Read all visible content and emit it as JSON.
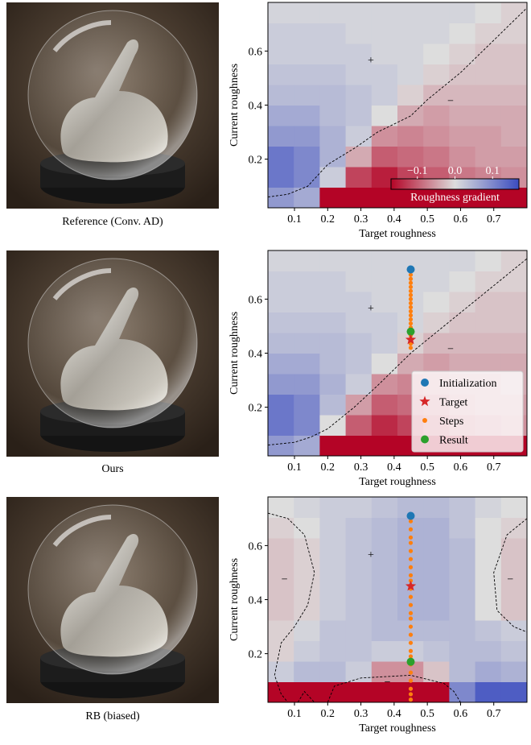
{
  "captions": [
    "Reference (Conv. AD)",
    "Ours",
    "RB (biased)"
  ],
  "chart_data": [
    {
      "type": "heatmap",
      "xlabel": "Target roughness",
      "ylabel": "Current roughness",
      "xlim": [
        0.02,
        0.8
      ],
      "ylim": [
        0.02,
        0.78
      ],
      "xticks": [
        0.1,
        0.2,
        0.3,
        0.4,
        0.5,
        0.6,
        0.7
      ],
      "yticks": [
        0.2,
        0.4,
        0.6
      ],
      "clim": [
        -0.17,
        0.17
      ],
      "cells": [
        [
          0.08,
          0.06,
          -0.2,
          -0.2,
          -0.2,
          -0.2,
          -0.2,
          -0.2,
          -0.2,
          -0.2
        ],
        [
          0.12,
          0.1,
          0.02,
          -0.12,
          -0.15,
          -0.12,
          -0.1,
          -0.08,
          -0.07,
          -0.06
        ],
        [
          0.12,
          0.1,
          0.05,
          -0.04,
          -0.1,
          -0.09,
          -0.08,
          -0.06,
          -0.05,
          -0.05
        ],
        [
          0.08,
          0.08,
          0.05,
          0.02,
          -0.06,
          -0.07,
          -0.06,
          -0.05,
          -0.05,
          -0.04
        ],
        [
          0.06,
          0.06,
          0.04,
          0.03,
          0.0,
          -0.04,
          -0.05,
          -0.04,
          -0.04,
          -0.04
        ],
        [
          0.04,
          0.04,
          0.04,
          0.03,
          0.02,
          -0.01,
          -0.03,
          -0.03,
          -0.03,
          -0.03
        ],
        [
          0.03,
          0.03,
          0.03,
          0.02,
          0.02,
          0.01,
          -0.01,
          -0.02,
          -0.02,
          -0.02
        ],
        [
          0.02,
          0.02,
          0.02,
          0.02,
          0.01,
          0.01,
          0.0,
          -0.01,
          -0.02,
          -0.02
        ],
        [
          0.02,
          0.02,
          0.02,
          0.01,
          0.01,
          0.01,
          0.01,
          0.0,
          -0.01,
          -0.01
        ],
        [
          0.01,
          0.01,
          0.01,
          0.01,
          0.01,
          0.01,
          0.01,
          0.01,
          0.0,
          -0.01
        ]
      ],
      "contours": [
        {
          "x": [
            0.02,
            0.08,
            0.14,
            0.2,
            0.28,
            0.35,
            0.45,
            0.5,
            0.6,
            0.7,
            0.8
          ],
          "y": [
            0.06,
            0.07,
            0.1,
            0.18,
            0.24,
            0.3,
            0.36,
            0.42,
            0.52,
            0.64,
            0.76
          ]
        }
      ],
      "annotations": [
        "+",
        "−"
      ],
      "colorbar": {
        "label": "Roughness gradient",
        "ticks": [
          {
            "value": -0.1,
            "label": "−0.1"
          },
          {
            "value": 0,
            "label": "0.0"
          },
          {
            "value": 0.1,
            "label": "0.1"
          }
        ]
      }
    },
    {
      "type": "heatmap",
      "xlabel": "Target roughness",
      "ylabel": "Current roughness",
      "xlim": [
        0.02,
        0.8
      ],
      "ylim": [
        0.02,
        0.78
      ],
      "xticks": [
        0.1,
        0.2,
        0.3,
        0.4,
        0.5,
        0.6,
        0.7
      ],
      "yticks": [
        0.2,
        0.4,
        0.6
      ],
      "clim": [
        -0.17,
        0.17
      ],
      "cells": [
        [
          0.08,
          0.06,
          -0.2,
          -0.2,
          -0.2,
          -0.2,
          -0.2,
          -0.2,
          -0.2,
          -0.2
        ],
        [
          0.12,
          0.1,
          0.0,
          -0.1,
          -0.14,
          -0.12,
          -0.1,
          -0.08,
          -0.07,
          -0.06
        ],
        [
          0.12,
          0.1,
          0.04,
          -0.05,
          -0.1,
          -0.09,
          -0.08,
          -0.06,
          -0.05,
          -0.05
        ],
        [
          0.08,
          0.08,
          0.05,
          0.02,
          -0.06,
          -0.07,
          -0.06,
          -0.05,
          -0.05,
          -0.04
        ],
        [
          0.06,
          0.06,
          0.04,
          0.03,
          0.0,
          -0.04,
          -0.05,
          -0.04,
          -0.04,
          -0.04
        ],
        [
          0.04,
          0.04,
          0.04,
          0.03,
          0.02,
          -0.01,
          -0.03,
          -0.03,
          -0.03,
          -0.03
        ],
        [
          0.03,
          0.03,
          0.03,
          0.02,
          0.02,
          0.01,
          -0.01,
          -0.02,
          -0.02,
          -0.02
        ],
        [
          0.02,
          0.02,
          0.02,
          0.02,
          0.01,
          0.01,
          0.0,
          -0.01,
          -0.02,
          -0.02
        ],
        [
          0.02,
          0.02,
          0.02,
          0.01,
          0.01,
          0.01,
          0.01,
          0.0,
          -0.01,
          -0.01
        ],
        [
          0.01,
          0.01,
          0.01,
          0.01,
          0.01,
          0.01,
          0.01,
          0.01,
          0.0,
          -0.01
        ]
      ],
      "contours": [
        {
          "x": [
            0.02,
            0.1,
            0.15,
            0.2,
            0.28,
            0.35,
            0.45,
            0.55,
            0.65,
            0.8
          ],
          "y": [
            0.06,
            0.07,
            0.09,
            0.12,
            0.2,
            0.28,
            0.4,
            0.5,
            0.6,
            0.75
          ]
        }
      ],
      "annotations": [
        "+",
        "−"
      ],
      "legend": "lower right",
      "series": [
        {
          "name": "Initialization",
          "color": "#1f77b4",
          "marker": "circle",
          "x": [
            0.45
          ],
          "y": [
            0.71
          ]
        },
        {
          "name": "Target",
          "color": "#d62728",
          "marker": "star",
          "x": [
            0.45
          ],
          "y": [
            0.45
          ]
        },
        {
          "name": "Steps",
          "color": "#ff7f0e",
          "marker": "dot",
          "x": [
            0.45,
            0.45,
            0.45,
            0.45,
            0.45,
            0.45,
            0.45,
            0.45,
            0.45,
            0.45,
            0.45,
            0.45,
            0.45,
            0.45,
            0.45,
            0.45,
            0.45,
            0.45,
            0.45
          ],
          "y": [
            0.69,
            0.675,
            0.66,
            0.645,
            0.63,
            0.615,
            0.6,
            0.585,
            0.57,
            0.555,
            0.54,
            0.525,
            0.51,
            0.495,
            0.48,
            0.465,
            0.45,
            0.435,
            0.42
          ]
        },
        {
          "name": "Result",
          "color": "#2ca02c",
          "marker": "circle",
          "x": [
            0.45
          ],
          "y": [
            0.48
          ]
        }
      ]
    },
    {
      "type": "heatmap",
      "xlabel": "Target roughness",
      "ylabel": "Current roughness",
      "xlim": [
        0.02,
        0.8
      ],
      "ylim": [
        0.02,
        0.78
      ],
      "xticks": [
        0.1,
        0.2,
        0.3,
        0.4,
        0.5,
        0.6,
        0.7
      ],
      "yticks": [
        0.2,
        0.4,
        0.6
      ],
      "clim": [
        -0.17,
        0.17
      ],
      "cells": [
        [
          -0.2,
          -0.2,
          -0.2,
          -0.2,
          -0.2,
          -0.2,
          -0.2,
          0.1,
          0.15,
          0.15
        ],
        [
          0.02,
          0.04,
          0.04,
          0.02,
          -0.06,
          -0.06,
          -0.02,
          0.04,
          0.06,
          0.05
        ],
        [
          -0.01,
          0.02,
          0.03,
          0.03,
          0.02,
          0.02,
          0.03,
          0.04,
          0.04,
          0.03
        ],
        [
          -0.01,
          0.01,
          0.03,
          0.03,
          0.04,
          0.04,
          0.04,
          0.04,
          0.03,
          0.02
        ],
        [
          -0.02,
          -0.01,
          0.02,
          0.03,
          0.04,
          0.05,
          0.05,
          0.04,
          0.0,
          -0.02
        ],
        [
          -0.02,
          -0.01,
          0.02,
          0.03,
          0.04,
          0.05,
          0.05,
          0.04,
          0.0,
          -0.02
        ],
        [
          -0.02,
          -0.01,
          0.02,
          0.03,
          0.04,
          0.05,
          0.05,
          0.04,
          0.0,
          -0.02
        ],
        [
          -0.02,
          -0.01,
          0.02,
          0.03,
          0.04,
          0.05,
          0.05,
          0.04,
          0.0,
          -0.02
        ],
        [
          -0.01,
          0.0,
          0.02,
          0.03,
          0.04,
          0.05,
          0.05,
          0.03,
          0.0,
          -0.01
        ],
        [
          0.0,
          0.01,
          0.02,
          0.02,
          0.03,
          0.04,
          0.04,
          0.03,
          0.01,
          0.0
        ]
      ],
      "contours": [
        {
          "x": [
            0.02,
            0.08,
            0.13,
            0.16,
            0.14,
            0.1,
            0.06,
            0.04,
            0.06,
            0.08
          ],
          "y": [
            0.72,
            0.7,
            0.64,
            0.5,
            0.38,
            0.3,
            0.24,
            0.12,
            0.05,
            0.02
          ]
        },
        {
          "x": [
            0.8,
            0.74,
            0.7,
            0.71,
            0.76,
            0.8
          ],
          "y": [
            0.7,
            0.64,
            0.5,
            0.36,
            0.3,
            0.28
          ]
        },
        {
          "x": [
            0.2,
            0.22,
            0.3,
            0.45,
            0.55,
            0.58,
            0.6
          ],
          "y": [
            0.02,
            0.08,
            0.11,
            0.12,
            0.09,
            0.06,
            0.02
          ]
        },
        {
          "x": [
            0.11,
            0.13,
            0.16
          ],
          "y": [
            0.02,
            0.06,
            0.02
          ]
        }
      ],
      "annotations": [
        "+",
        "−",
        "−",
        "−"
      ],
      "series": [
        {
          "color": "#1f77b4",
          "marker": "circle",
          "x": [
            0.45
          ],
          "y": [
            0.71
          ]
        },
        {
          "color": "#d62728",
          "marker": "star",
          "x": [
            0.45
          ],
          "y": [
            0.45
          ]
        },
        {
          "color": "#ff7f0e",
          "marker": "dot",
          "x": [
            0.45,
            0.45,
            0.45,
            0.45,
            0.45,
            0.45,
            0.45,
            0.45,
            0.45,
            0.45,
            0.45,
            0.45,
            0.45,
            0.45,
            0.45,
            0.45,
            0.45,
            0.45,
            0.45,
            0.45,
            0.45,
            0.45,
            0.45,
            0.45,
            0.45
          ],
          "y": [
            0.69,
            0.66,
            0.63,
            0.61,
            0.58,
            0.55,
            0.52,
            0.49,
            0.47,
            0.44,
            0.41,
            0.38,
            0.35,
            0.33,
            0.3,
            0.27,
            0.24,
            0.21,
            0.19,
            0.16,
            0.13,
            0.1,
            0.07,
            0.05,
            0.03
          ]
        },
        {
          "color": "#2ca02c",
          "marker": "circle",
          "x": [
            0.45
          ],
          "y": [
            0.17
          ]
        }
      ]
    }
  ]
}
